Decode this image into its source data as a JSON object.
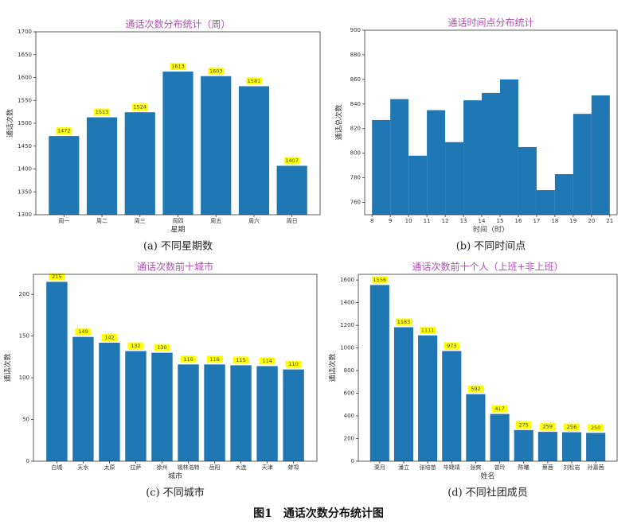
{
  "chart_data": [
    {
      "type": "bar",
      "title": "通话次数分布统计（周）",
      "y_label": "通话次数",
      "x_label": "星期",
      "caption": "(a) 不同星期数",
      "categories": [
        "周一",
        "周二",
        "周三",
        "周四",
        "周五",
        "周六",
        "周日"
      ],
      "values": [
        1472,
        1513,
        1524,
        1613,
        1603,
        1581,
        1407
      ],
      "color": "#1f77b4",
      "label_color": "#ffff00",
      "ylim": [
        1300,
        1700
      ],
      "yticks": [
        1300,
        1350,
        1400,
        1450,
        1500,
        1550,
        1600,
        1650,
        1700
      ]
    },
    {
      "type": "histogram",
      "title": "通话时间点分布统计",
      "y_label": "通话总次数",
      "x_label": "时间（时）",
      "caption": "(b) 不同时间点",
      "bins": [
        8,
        9,
        10,
        11,
        12,
        13,
        14,
        15,
        16,
        17,
        18,
        19,
        20,
        21
      ],
      "values": [
        827,
        844,
        798,
        835,
        809,
        843,
        849,
        860,
        805,
        770,
        783,
        832,
        847
      ],
      "color": "#1f77b4",
      "xlim": [
        7.6,
        21.4
      ],
      "xticks": [
        8,
        9,
        10,
        11,
        12,
        13,
        14,
        15,
        16,
        17,
        18,
        19,
        20,
        21
      ],
      "ylim": [
        750,
        900
      ],
      "yticks": [
        760,
        780,
        800,
        820,
        840,
        860,
        880,
        900
      ]
    },
    {
      "type": "bar",
      "title": "通话次数前十城市",
      "y_label": "通话次数",
      "x_label": "城市",
      "caption": "(c) 不同城市",
      "categories": [
        "白城",
        "天水",
        "太原",
        "拉萨",
        "徐州",
        "锡林浩特",
        "岳阳",
        "大连",
        "天津",
        "蚌埠"
      ],
      "values": [
        215,
        149,
        142,
        132,
        130,
        116,
        116,
        115,
        114,
        110
      ],
      "color": "#1f77b4",
      "label_color": "#ffff00",
      "ylim": [
        0,
        224
      ],
      "yticks": [
        0,
        50,
        100,
        150,
        200
      ]
    },
    {
      "type": "bar",
      "title": "通话次数前十个人（上班+非上班）",
      "y_label": "通话次数",
      "x_label": "姓名",
      "caption": "(d) 不同社团成员",
      "categories": [
        "栗月",
        "潘立",
        "张培苗",
        "毕婕靖",
        "张爽",
        "曾玲",
        "陈曦",
        "蔡茜",
        "刘松岩",
        "孙嘉茜"
      ],
      "values": [
        1556,
        1183,
        1111,
        973,
        592,
        417,
        275,
        259,
        256,
        250
      ],
      "color": "#1f77b4",
      "label_color": "#ffff00",
      "ylim": [
        0,
        1650
      ],
      "yticks": [
        0,
        200,
        400,
        600,
        800,
        1000,
        1200,
        1400,
        1600
      ]
    }
  ],
  "figure_caption": "图1　通话次数分布统计图"
}
